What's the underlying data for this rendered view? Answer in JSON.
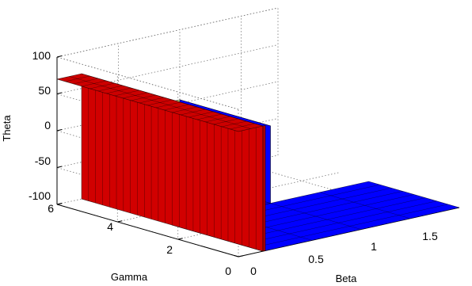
{
  "chart_data": {
    "type": "surface3d",
    "title": "",
    "xlabel": "Beta",
    "ylabel": "Gamma",
    "zlabel": "Theta",
    "xlim": [
      0,
      1.8
    ],
    "ylim": [
      0,
      6
    ],
    "zlim": [
      -100,
      100
    ],
    "xticks": [
      "0",
      "0.5",
      "1",
      "1.5"
    ],
    "yticks": [
      "0",
      "2",
      "4",
      "6"
    ],
    "zticks": [
      "100",
      "50",
      "0",
      "-50",
      "-100"
    ],
    "grid": true,
    "regions": [
      {
        "name": "",
        "color": "#cc0000",
        "beta_range": [
          0,
          0.2
        ],
        "gamma_range": [
          0,
          6
        ],
        "theta": 70
      },
      {
        "name": "",
        "color": "#0000ff",
        "beta_range": [
          0.2,
          1.8
        ],
        "gamma_range": [
          0,
          3
        ],
        "theta": -100
      },
      {
        "name": "",
        "color": "#ccff99",
        "beta_range": [
          0.2,
          1.0
        ],
        "gamma_range": [
          3,
          6
        ],
        "theta": 5
      }
    ],
    "colors": {
      "high": "#cc0000",
      "low": "#0000ff",
      "mid": "#ccff99",
      "edge": "#000000"
    }
  }
}
